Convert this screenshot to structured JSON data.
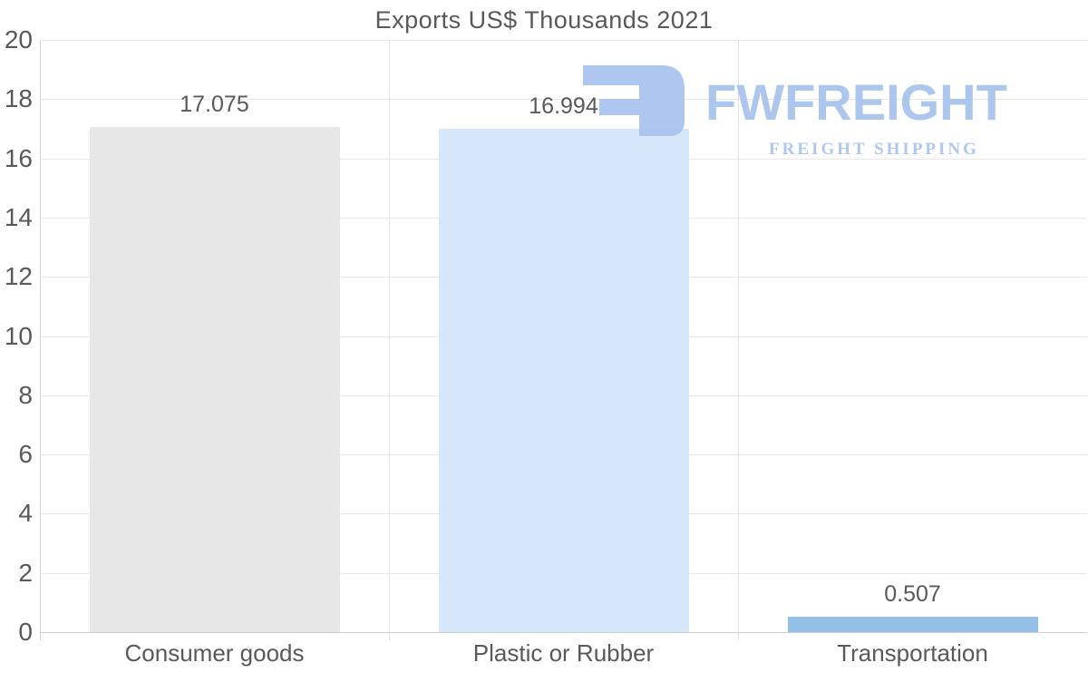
{
  "page": {
    "background": "#ffffff",
    "text_color": "#595959"
  },
  "chart_data": {
    "type": "bar",
    "title": "Exports US$ Thousands 2021",
    "categories": [
      "Consumer goods",
      "Plastic or Rubber",
      "Transportation"
    ],
    "values": [
      17.075,
      16.994,
      0.507
    ],
    "value_labels": [
      "17.075",
      "16.994",
      "0.507"
    ],
    "bar_colors": [
      "#e7e7e8",
      "#d5e7f8",
      "#94bfe8"
    ],
    "ylim": [
      0,
      20
    ],
    "yticks": [
      0,
      2,
      4,
      6,
      8,
      10,
      12,
      14,
      16,
      18,
      20
    ],
    "xlabel": "",
    "ylabel": "",
    "grid": true,
    "legend_position": "none",
    "gridline_color": "#e8e8e8",
    "axis_color": "#d6d6d6"
  },
  "watermark": {
    "brand": "FWFREIGHT",
    "tagline": "FREIGHT SHIPPING",
    "color": "#a9c4ee"
  }
}
